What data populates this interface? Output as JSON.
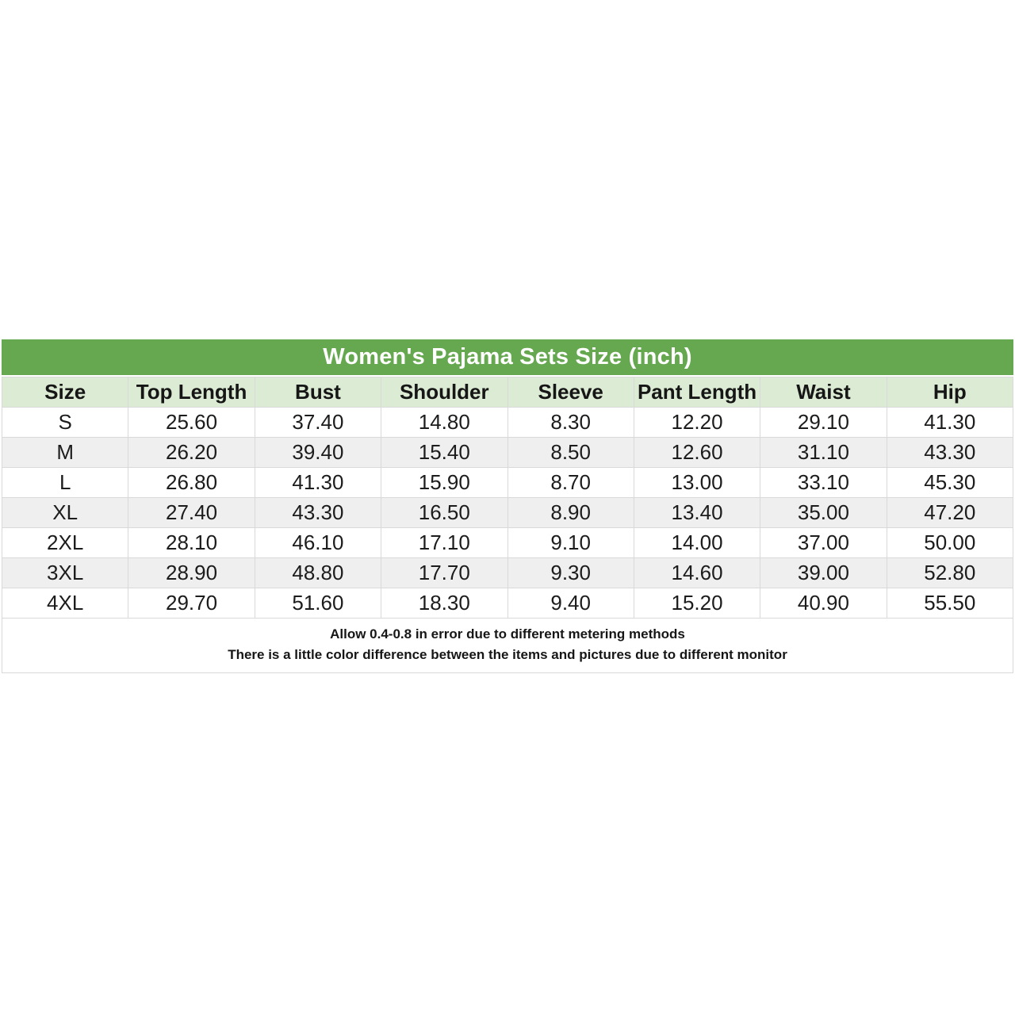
{
  "title": "Women's Pajama Sets Size (inch)",
  "chart_data": {
    "type": "table",
    "title": "Women's Pajama Sets Size (inch)",
    "unit": "inch",
    "columns": [
      "Size",
      "Top Length",
      "Bust",
      "Shoulder",
      "Sleeve",
      "Pant Length",
      "Waist",
      "Hip"
    ],
    "rows": [
      [
        "S",
        "25.60",
        "37.40",
        "14.80",
        "8.30",
        "12.20",
        "29.10",
        "41.30"
      ],
      [
        "M",
        "26.20",
        "39.40",
        "15.40",
        "8.50",
        "12.60",
        "31.10",
        "43.30"
      ],
      [
        "L",
        "26.80",
        "41.30",
        "15.90",
        "8.70",
        "13.00",
        "33.10",
        "45.30"
      ],
      [
        "XL",
        "27.40",
        "43.30",
        "16.50",
        "8.90",
        "13.40",
        "35.00",
        "47.20"
      ],
      [
        "2XL",
        "28.10",
        "46.10",
        "17.10",
        "9.10",
        "14.00",
        "37.00",
        "50.00"
      ],
      [
        "3XL",
        "28.90",
        "48.80",
        "17.70",
        "9.30",
        "14.60",
        "39.00",
        "52.80"
      ],
      [
        "4XL",
        "29.70",
        "51.60",
        "18.30",
        "9.40",
        "15.20",
        "40.90",
        "55.50"
      ]
    ]
  },
  "notes": {
    "line1": "Allow 0.4-0.8 in error due to different metering methods",
    "line2": "There is a little color difference between the items and pictures due to different monitor"
  },
  "colors": {
    "title_bar_bg": "#66a84f",
    "title_text": "#ffffff",
    "header_row_bg": "#dcebd3",
    "alt_row_bg": "#efefef",
    "border": "#d9d9d9",
    "body_text": "#1c1c1c"
  }
}
